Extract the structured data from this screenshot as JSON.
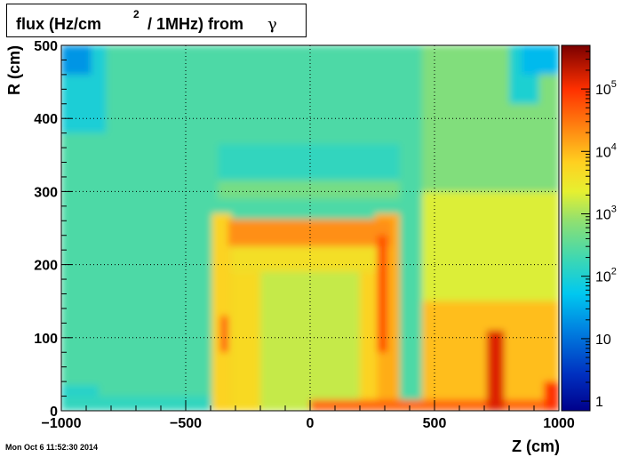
{
  "title": {
    "main": "flux (Hz/cm",
    "superscript": "2",
    "rest": "/ 1MHz) from",
    "particle": "γ"
  },
  "timestamp": "Mon Oct  6 11:52:30 2014",
  "chart_data": {
    "type": "heatmap",
    "xlabel": "Z (cm)",
    "ylabel": "R (cm)",
    "xlim": [
      -1000,
      1000
    ],
    "ylim": [
      0,
      500
    ],
    "x_ticks": [
      -1000,
      -500,
      0,
      500,
      1000
    ],
    "x_tick_labels": [
      "−1000",
      "−500",
      "0",
      "500",
      "1000"
    ],
    "y_ticks": [
      0,
      100,
      200,
      300,
      400,
      500
    ],
    "y_tick_labels": [
      "0",
      "100",
      "200",
      "300",
      "400",
      "500"
    ],
    "grid": true,
    "colorbar": {
      "scale": "log",
      "range": [
        0.7,
        500000
      ],
      "ticks": [
        1,
        10,
        100,
        1000,
        10000,
        100000
      ],
      "tick_labels": [
        {
          "base": "1",
          "exp": ""
        },
        {
          "base": "10",
          "exp": ""
        },
        {
          "base": "10",
          "exp": "2"
        },
        {
          "base": "10",
          "exp": "3"
        },
        {
          "base": "10",
          "exp": "4"
        },
        {
          "base": "10",
          "exp": "5"
        }
      ]
    },
    "regions": [
      {
        "z": [
          -1000,
          1000
        ],
        "r": [
          0,
          500
        ],
        "flux": 250
      },
      {
        "z": [
          450,
          1000
        ],
        "r": [
          0,
          300
        ],
        "flux": 2000
      },
      {
        "z": [
          450,
          1000
        ],
        "r": [
          0,
          150
        ],
        "flux": 9000
      },
      {
        "z": [
          450,
          1000
        ],
        "r": [
          300,
          500
        ],
        "flux": 600
      },
      {
        "z": [
          -1000,
          -820
        ],
        "r": [
          380,
          500
        ],
        "flux": 90
      },
      {
        "z": [
          -1000,
          -880
        ],
        "r": [
          460,
          500
        ],
        "flux": 20
      },
      {
        "z": [
          800,
          920
        ],
        "r": [
          420,
          500
        ],
        "flux": 100
      },
      {
        "z": [
          850,
          1000
        ],
        "r": [
          460,
          500
        ],
        "flux": 40
      },
      {
        "z": [
          -370,
          360
        ],
        "r": [
          315,
          365
        ],
        "flux": 150
      },
      {
        "z": [
          -370,
          360
        ],
        "r": [
          290,
          315
        ],
        "flux": 500
      },
      {
        "z": [
          -1000,
          -850
        ],
        "r": [
          0,
          35
        ],
        "flux": 120
      },
      {
        "z": [
          -1000,
          -380
        ],
        "r": [
          0,
          20
        ],
        "flux": 150
      },
      {
        "z": [
          -395,
          -315
        ],
        "r": [
          0,
          270
        ],
        "flux": 6000
      },
      {
        "z": [
          260,
          360
        ],
        "r": [
          0,
          270
        ],
        "flux": 12000
      },
      {
        "z": [
          -330,
          330
        ],
        "r": [
          225,
          262
        ],
        "flux": 20000
      },
      {
        "z": [
          -315,
          270
        ],
        "r": [
          190,
          225
        ],
        "flux": 4000
      },
      {
        "z": [
          -315,
          -200
        ],
        "r": [
          0,
          190
        ],
        "flux": 5000
      },
      {
        "z": [
          200,
          270
        ],
        "r": [
          0,
          190
        ],
        "flux": 6000
      },
      {
        "z": [
          -200,
          200
        ],
        "r": [
          0,
          190
        ],
        "flux": 1500
      },
      {
        "z": [
          -360,
          -330
        ],
        "r": [
          80,
          130
        ],
        "flux": 50000
      },
      {
        "z": [
          270,
          310
        ],
        "r": [
          80,
          240
        ],
        "flux": 60000
      },
      {
        "z": [
          0,
          1000
        ],
        "r": [
          0,
          15
        ],
        "flux": 40000
      },
      {
        "z": [
          710,
          780
        ],
        "r": [
          0,
          110
        ],
        "flux": 150000
      },
      {
        "z": [
          940,
          1000
        ],
        "r": [
          0,
          40
        ],
        "flux": 100000
      }
    ]
  }
}
